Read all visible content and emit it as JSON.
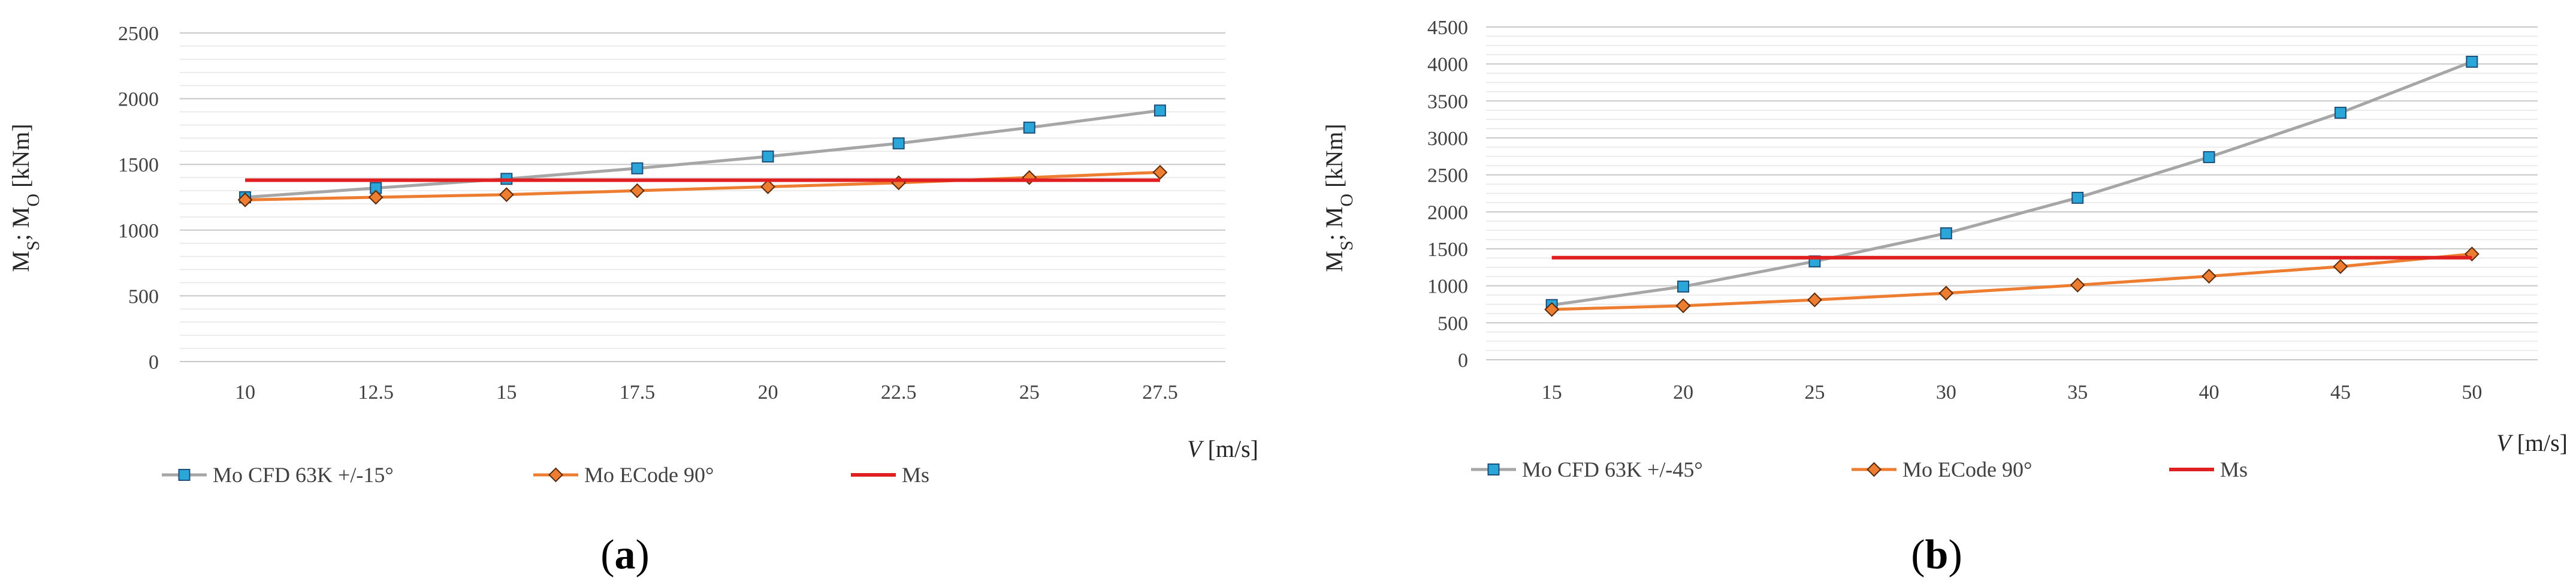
{
  "chart_data": [
    {
      "type": "line",
      "panel_label": "a",
      "ylabel": "MS; MO [kNm]",
      "xlabel": "V [m/s]",
      "categories": [
        "10",
        "12.5",
        "15",
        "17.5",
        "20",
        "22.5",
        "25",
        "27.5"
      ],
      "y_ticks": [
        "0",
        "500",
        "1000",
        "1500",
        "2000",
        "2500"
      ],
      "ylim": [
        0,
        2500
      ],
      "grid": true,
      "legend_position": "bottom",
      "series": [
        {
          "name": "Mo CFD 63K +/-15°",
          "color": "#a6a6a6",
          "marker": "square",
          "marker_color": "#2aa7d8",
          "values": [
            1250,
            1320,
            1390,
            1470,
            1560,
            1660,
            1780,
            1910
          ]
        },
        {
          "name": "Mo ECode 90°",
          "color": "#ed7d31",
          "marker": "diamond",
          "marker_color": "#ed7d31",
          "values": [
            1230,
            1250,
            1270,
            1300,
            1330,
            1360,
            1400,
            1440
          ]
        },
        {
          "name": "Ms",
          "color": "#e02020",
          "marker": "none",
          "values": [
            1380,
            1380,
            1380,
            1380,
            1380,
            1380,
            1380,
            1380
          ]
        }
      ]
    },
    {
      "type": "line",
      "panel_label": "b",
      "ylabel": "MS; MO [kNm]",
      "xlabel": "V [m/s]",
      "categories": [
        "15",
        "20",
        "25",
        "30",
        "35",
        "40",
        "45",
        "50"
      ],
      "y_ticks": [
        "0",
        "500",
        "1000",
        "1500",
        "2000",
        "2500",
        "3000",
        "3500",
        "4000",
        "4500"
      ],
      "ylim": [
        0,
        4500
      ],
      "grid": true,
      "legend_position": "bottom",
      "series": [
        {
          "name": "Mo CFD 63K +/-45°",
          "color": "#a6a6a6",
          "marker": "square",
          "marker_color": "#2aa7d8",
          "values": [
            740,
            990,
            1330,
            1710,
            2190,
            2740,
            3340,
            4030
          ]
        },
        {
          "name": "Mo ECode 90°",
          "color": "#ed7d31",
          "marker": "diamond",
          "marker_color": "#ed7d31",
          "values": [
            680,
            730,
            810,
            900,
            1010,
            1130,
            1260,
            1430
          ]
        },
        {
          "name": "Ms",
          "color": "#e02020",
          "marker": "none",
          "values": [
            1380,
            1380,
            1380,
            1380,
            1380,
            1380,
            1380,
            1380
          ]
        }
      ]
    }
  ]
}
